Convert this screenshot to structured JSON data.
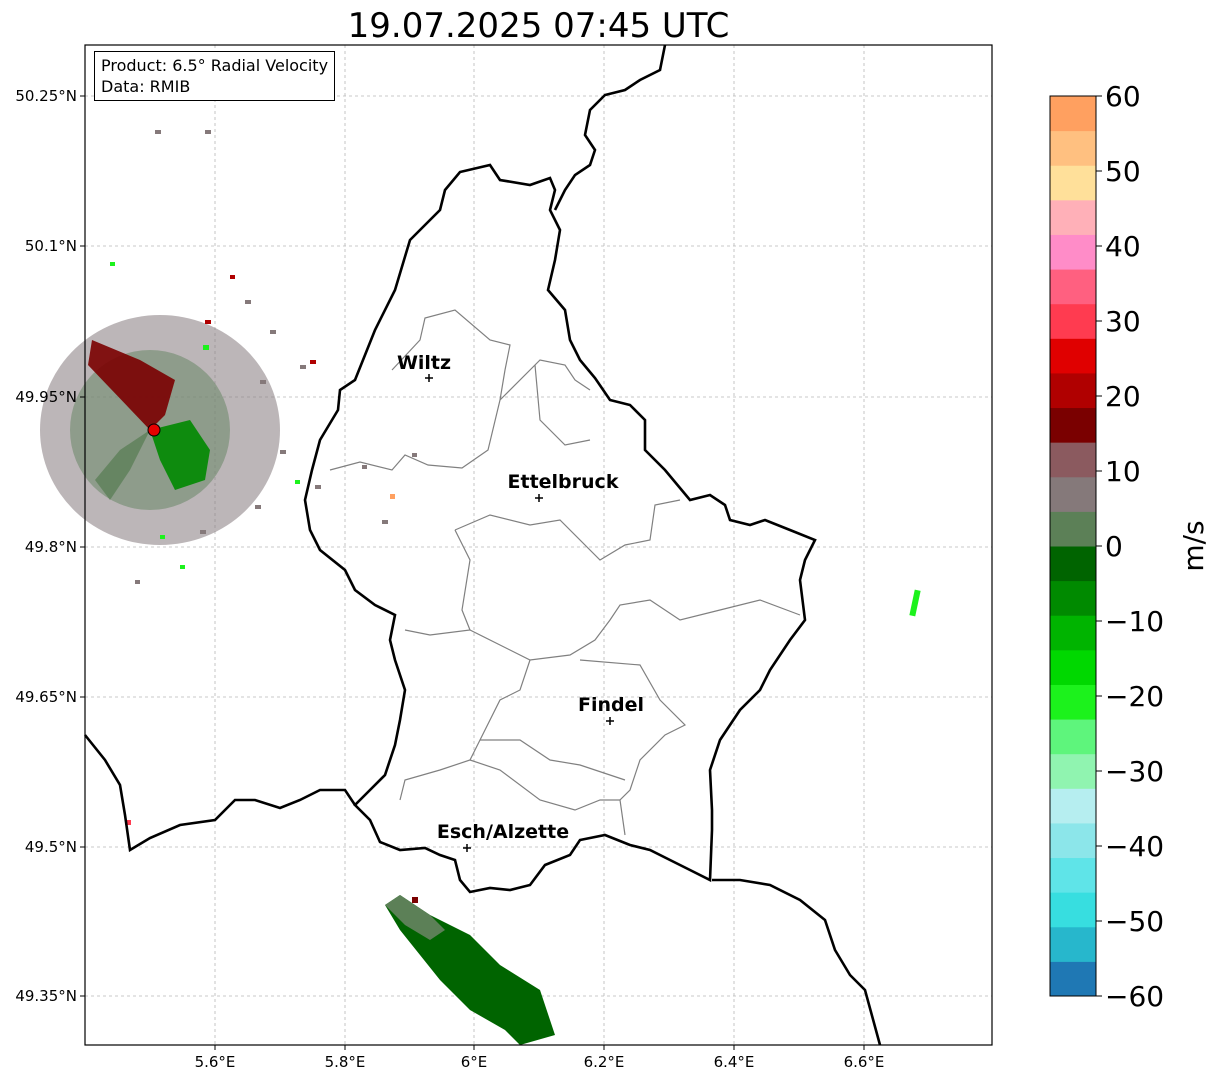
{
  "title": "19.07.2025 07:45 UTC",
  "info_box": {
    "product": "Product: 6.5° Radial Velocity",
    "data": "Data: RMIB"
  },
  "axes": {
    "lon_ticks": [
      "5.6°E",
      "5.8°E",
      "6°E",
      "6.2°E",
      "6.4°E",
      "6.6°E"
    ],
    "lat_ticks": [
      "50.25°N",
      "50.1°N",
      "49.95°N",
      "49.8°N",
      "49.65°N",
      "49.5°N",
      "49.35°N"
    ]
  },
  "cities": [
    {
      "name": "Wiltz",
      "lon": 5.93,
      "lat": 49.97
    },
    {
      "name": "Ettelbruck",
      "lon": 6.1,
      "lat": 49.85
    },
    {
      "name": "Findel",
      "lon": 6.21,
      "lat": 49.63
    },
    {
      "name": "Esch/Alzette",
      "lon": 5.99,
      "lat": 49.5
    }
  ],
  "radar_site": {
    "lon": 5.51,
    "lat": 49.915,
    "color": "#e60000"
  },
  "colorbar": {
    "unit": "m/s",
    "ticks": [
      "60",
      "50",
      "40",
      "30",
      "20",
      "10",
      "0",
      "−10",
      "−20",
      "−30",
      "−40",
      "−50",
      "−60"
    ],
    "range": [
      -60,
      60
    ],
    "colors": [
      "#1f78b4",
      "#27b7cc",
      "#37dee0",
      "#5fe4e8",
      "#8ce6ea",
      "#b6eef0",
      "#90f4b0",
      "#5ef57c",
      "#1cf21c",
      "#00d800",
      "#00b400",
      "#008a00",
      "#006400",
      "#5c8057",
      "#85797a",
      "#8b5a5f",
      "#7a0000",
      "#b00000",
      "#e00000",
      "#ff3b50",
      "#ff6080",
      "#ff8cc8",
      "#ffb0b8",
      "#ffe09a",
      "#ffc080",
      "#ffa060"
    ]
  }
}
